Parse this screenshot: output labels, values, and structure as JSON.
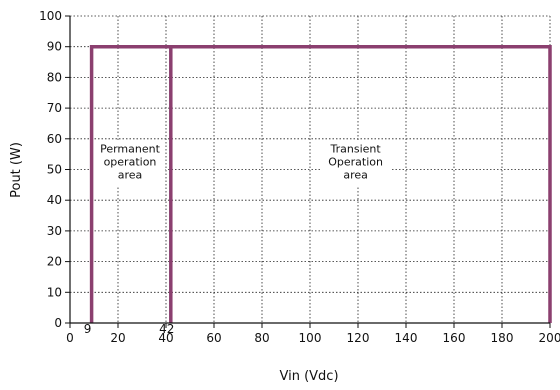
{
  "chart_data": {
    "type": "line",
    "xlabel": "Vin (Vdc)",
    "ylabel": "Pout (W)",
    "xlim": [
      0,
      200
    ],
    "ylim": [
      0,
      100
    ],
    "x_ticks": [
      "0",
      "20",
      "40",
      "60",
      "80",
      "100",
      "120",
      "140",
      "160",
      "180",
      "200"
    ],
    "y_ticks": [
      "0",
      "10",
      "20",
      "30",
      "40",
      "50",
      "60",
      "70",
      "80",
      "90",
      "100"
    ],
    "grid": true,
    "grid_style": "dotted",
    "extra_x_labels": [
      {
        "x": 9,
        "text": "9"
      },
      {
        "x": 42,
        "text": "42"
      }
    ],
    "series": [
      {
        "color": "#8b3f6f",
        "segments": [
          {
            "x": [
              9,
              9,
              200,
              200
            ],
            "y": [
              0,
              90,
              90,
              0
            ]
          },
          {
            "x": [
              42,
              42
            ],
            "y": [
              0,
              90
            ]
          }
        ]
      }
    ],
    "annotations": [
      {
        "lines": [
          "Permanent",
          "operation",
          "area"
        ],
        "x": 25,
        "y": 50
      },
      {
        "lines": [
          "Transient",
          "Operation",
          "area"
        ],
        "x": 119,
        "y": 50
      }
    ]
  }
}
